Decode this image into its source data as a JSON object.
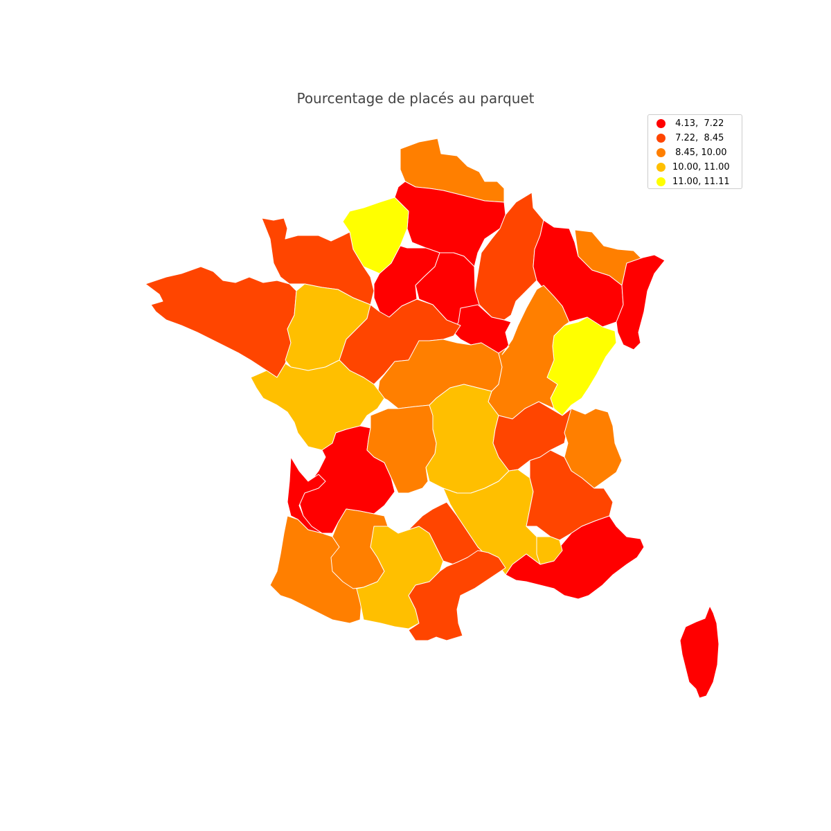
{
  "title": "Pourcentage de placés au parquet",
  "colors": {
    "c1": "#ff0000",
    "c2": "#ff4500",
    "c3": "#ff7f00",
    "c4": "#ffbf00",
    "c5": "#ffff00"
  },
  "legend": [
    {
      "label": " 4.13,  7.22",
      "color": "#ff0000"
    },
    {
      "label": " 7.22,  8.45",
      "color": "#ff4500"
    },
    {
      "label": " 8.45, 10.00",
      "color": "#ff7f00"
    },
    {
      "label": "10.00, 11.00",
      "color": "#ffbf00"
    },
    {
      "label": "11.00, 11.11",
      "color": "#ffff00"
    }
  ],
  "regions": [
    {
      "id": "nord",
      "class": 3
    },
    {
      "id": "picardie",
      "class": 1
    },
    {
      "id": "haute-normandie",
      "class": 5
    },
    {
      "id": "basse-normandie",
      "class": 2
    },
    {
      "id": "bretagne",
      "class": 2
    },
    {
      "id": "champagne-ardenne",
      "class": 2
    },
    {
      "id": "lorraine",
      "class": 1
    },
    {
      "id": "alsace-nord",
      "class": 3
    },
    {
      "id": "alsace",
      "class": 1
    },
    {
      "id": "ile-de-france",
      "class": 1
    },
    {
      "id": "centre-nord",
      "class": 1
    },
    {
      "id": "bourgogne-nord",
      "class": 1
    },
    {
      "id": "pays-de-la-loire-est",
      "class": 4
    },
    {
      "id": "centre",
      "class": 2
    },
    {
      "id": "bourgogne",
      "class": 3
    },
    {
      "id": "franche-comte",
      "class": 5
    },
    {
      "id": "poitou-charentes",
      "class": 4
    },
    {
      "id": "limousin-nord",
      "class": 3
    },
    {
      "id": "auvergne",
      "class": 4
    },
    {
      "id": "rhone",
      "class": 2
    },
    {
      "id": "savoie",
      "class": 3
    },
    {
      "id": "dordogne",
      "class": 1
    },
    {
      "id": "landes-gironde",
      "class": 1
    },
    {
      "id": "limousin",
      "class": 3
    },
    {
      "id": "drome-ardeche",
      "class": 4
    },
    {
      "id": "isere-sud",
      "class": 2
    },
    {
      "id": "aquitaine-sud",
      "class": 3
    },
    {
      "id": "lot-garonne",
      "class": 3
    },
    {
      "id": "midi-pyrenees",
      "class": 4
    },
    {
      "id": "aveyron-gard",
      "class": 2
    },
    {
      "id": "languedoc",
      "class": 2
    },
    {
      "id": "provence",
      "class": 1
    },
    {
      "id": "alpes-sud",
      "class": 4
    },
    {
      "id": "corse",
      "class": 1
    }
  ]
}
